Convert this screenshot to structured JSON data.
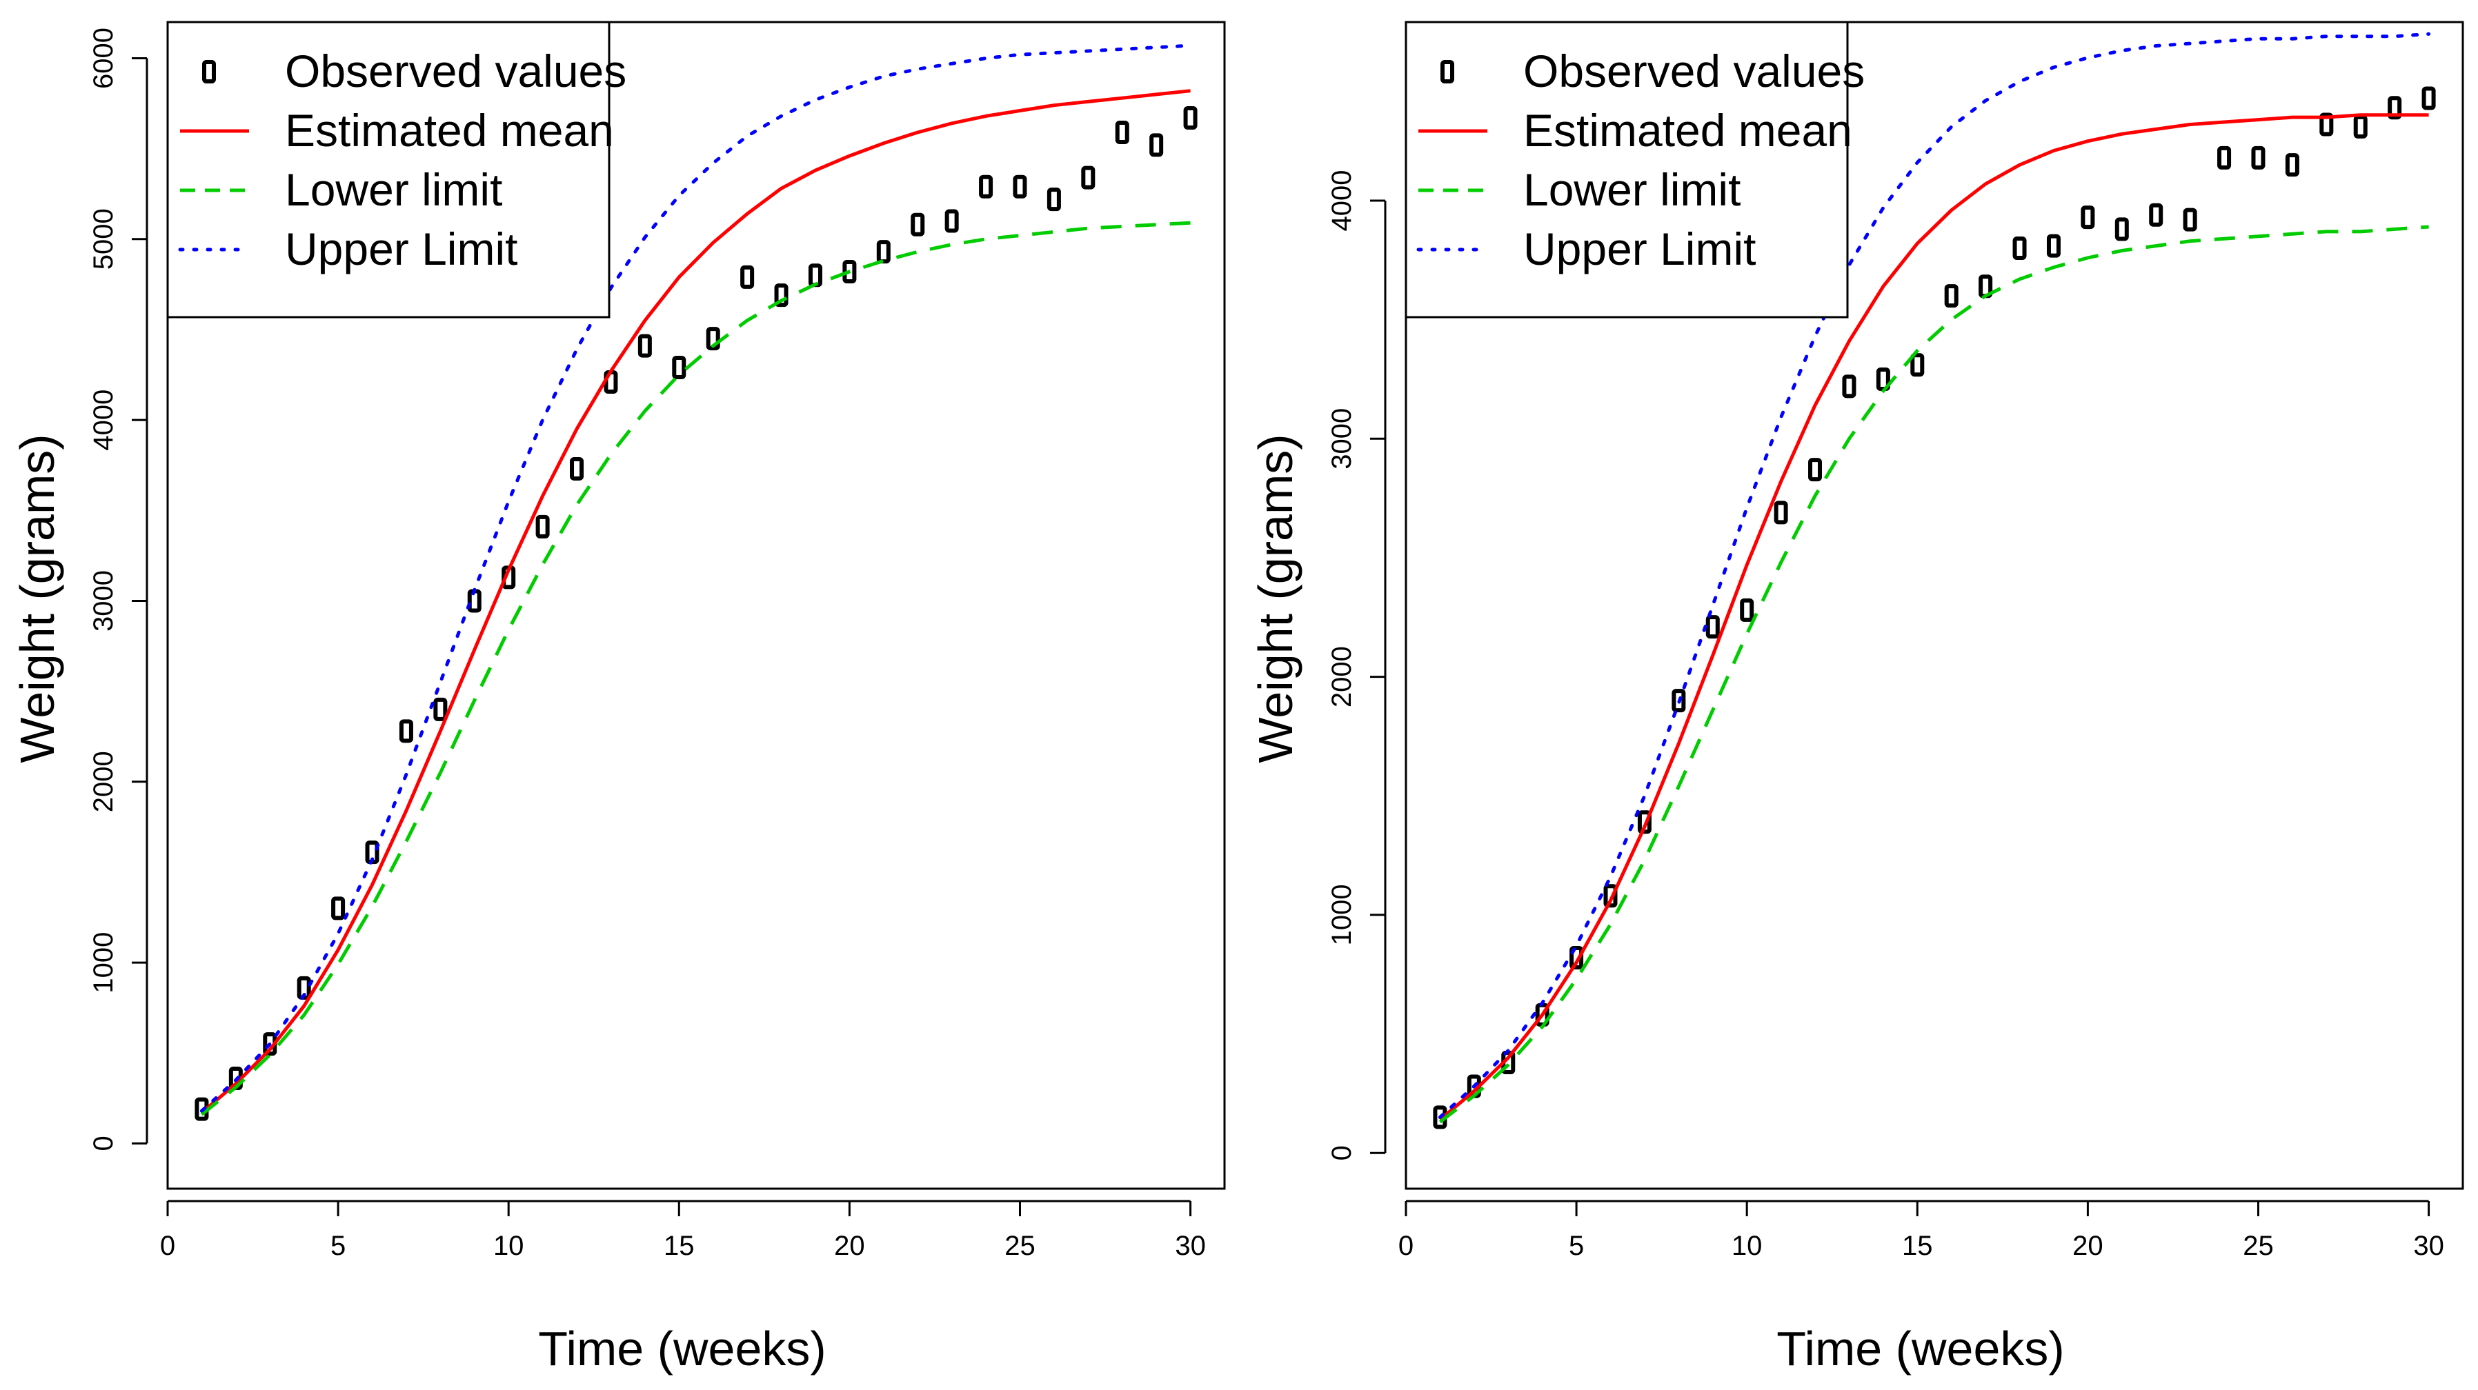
{
  "chart_data": [
    {
      "type": "line",
      "title": "",
      "xlabel": "Time (weeks)",
      "ylabel": "Weight (grams)",
      "xlim": [
        0,
        31
      ],
      "ylim": [
        -250,
        6200
      ],
      "xticks": [
        0,
        5,
        10,
        15,
        20,
        25,
        30
      ],
      "xtick_labels": [
        "0",
        "5",
        "10",
        "15",
        "20",
        "25",
        "30"
      ],
      "yticks": [
        0,
        1000,
        2000,
        3000,
        4000,
        5000,
        6000
      ],
      "ytick_labels": [
        "0",
        "1000",
        "2000",
        "3000",
        "4000",
        "5000",
        "6000"
      ],
      "grid": false,
      "legend_position": "top-left",
      "legend": [
        "Observed values",
        "Estimated mean",
        "Lower limit",
        "Upper Limit"
      ],
      "colors": {
        "observed": "#000000",
        "mean": "#ff0000",
        "lower": "#00cc00",
        "upper": "#0000ff"
      },
      "x": [
        1,
        2,
        3,
        4,
        5,
        6,
        7,
        8,
        9,
        10,
        11,
        12,
        13,
        14,
        15,
        16,
        17,
        18,
        19,
        20,
        21,
        22,
        23,
        24,
        25,
        26,
        27,
        28,
        29,
        30
      ],
      "series": [
        {
          "name": "Observed values",
          "style": "points",
          "values": [
            190,
            360,
            550,
            860,
            1300,
            1610,
            2280,
            2400,
            3000,
            3130,
            3410,
            3730,
            4210,
            4410,
            4290,
            4450,
            4790,
            4690,
            4800,
            4820,
            4930,
            5080,
            5100,
            5290,
            5290,
            5220,
            5340,
            5590,
            5520,
            5670
          ]
        },
        {
          "name": "Estimated mean",
          "style": "solid",
          "values": [
            170,
            330,
            520,
            760,
            1070,
            1430,
            1840,
            2280,
            2730,
            3170,
            3580,
            3950,
            4270,
            4550,
            4790,
            4980,
            5140,
            5280,
            5380,
            5460,
            5530,
            5590,
            5640,
            5680,
            5710,
            5740,
            5760,
            5780,
            5800,
            5820
          ]
        },
        {
          "name": "Lower limit",
          "style": "dashed",
          "values": [
            160,
            310,
            490,
            710,
            990,
            1310,
            1670,
            2050,
            2450,
            2840,
            3200,
            3530,
            3810,
            4050,
            4250,
            4410,
            4550,
            4660,
            4750,
            4820,
            4880,
            4930,
            4970,
            5000,
            5020,
            5040,
            5060,
            5070,
            5080,
            5090
          ]
        },
        {
          "name": "Upper Limit",
          "style": "dotted",
          "values": [
            180,
            350,
            550,
            820,
            1160,
            1570,
            2040,
            2550,
            3060,
            3550,
            4000,
            4390,
            4730,
            5010,
            5240,
            5420,
            5570,
            5680,
            5770,
            5840,
            5900,
            5940,
            5970,
            6000,
            6020,
            6030,
            6040,
            6050,
            6060,
            6070
          ]
        }
      ]
    },
    {
      "type": "line",
      "title": "",
      "xlabel": "Time (weeks)",
      "ylabel": "Weight (grams)",
      "xlim": [
        0,
        31
      ],
      "ylim": [
        -150,
        4750
      ],
      "xticks": [
        0,
        5,
        10,
        15,
        20,
        25,
        30
      ],
      "xtick_labels": [
        "0",
        "5",
        "10",
        "15",
        "20",
        "25",
        "30"
      ],
      "yticks": [
        0,
        1000,
        2000,
        3000,
        4000
      ],
      "ytick_labels": [
        "0",
        "1000",
        "2000",
        "3000",
        "4000"
      ],
      "grid": false,
      "legend_position": "top-left",
      "legend": [
        "Observed values",
        "Estimated mean",
        "Lower limit",
        "Upper Limit"
      ],
      "colors": {
        "observed": "#000000",
        "mean": "#ff0000",
        "lower": "#00cc00",
        "upper": "#0000ff"
      },
      "x": [
        1,
        2,
        3,
        4,
        5,
        6,
        7,
        8,
        9,
        10,
        11,
        12,
        13,
        14,
        15,
        16,
        17,
        18,
        19,
        20,
        21,
        22,
        23,
        24,
        25,
        26,
        27,
        28,
        29,
        30
      ],
      "series": [
        {
          "name": "Observed values",
          "style": "points",
          "values": [
            150,
            280,
            380,
            580,
            820,
            1080,
            1390,
            1900,
            2210,
            2280,
            2690,
            2870,
            3220,
            3250,
            3310,
            3600,
            3640,
            3800,
            3810,
            3930,
            3880,
            3940,
            3920,
            4180,
            4180,
            4150,
            4320,
            4310,
            4390,
            4430
          ]
        },
        {
          "name": "Estimated mean",
          "style": "solid",
          "values": [
            140,
            260,
            400,
            580,
            800,
            1060,
            1370,
            1720,
            2090,
            2470,
            2820,
            3140,
            3410,
            3640,
            3820,
            3960,
            4070,
            4150,
            4210,
            4250,
            4280,
            4300,
            4320,
            4330,
            4340,
            4350,
            4350,
            4360,
            4360,
            4360
          ]
        },
        {
          "name": "Lower limit",
          "style": "dashed",
          "values": [
            130,
            240,
            370,
            530,
            730,
            960,
            1230,
            1540,
            1860,
            2180,
            2480,
            2760,
            3000,
            3200,
            3370,
            3500,
            3600,
            3670,
            3720,
            3760,
            3790,
            3810,
            3830,
            3840,
            3850,
            3860,
            3870,
            3870,
            3880,
            3890
          ]
        },
        {
          "name": "Upper Limit",
          "style": "dotted",
          "values": [
            150,
            280,
            430,
            630,
            870,
            1160,
            1500,
            1890,
            2300,
            2710,
            3090,
            3430,
            3730,
            3970,
            4160,
            4310,
            4420,
            4500,
            4560,
            4600,
            4630,
            4650,
            4660,
            4670,
            4680,
            4680,
            4690,
            4690,
            4690,
            4700
          ]
        }
      ]
    }
  ]
}
